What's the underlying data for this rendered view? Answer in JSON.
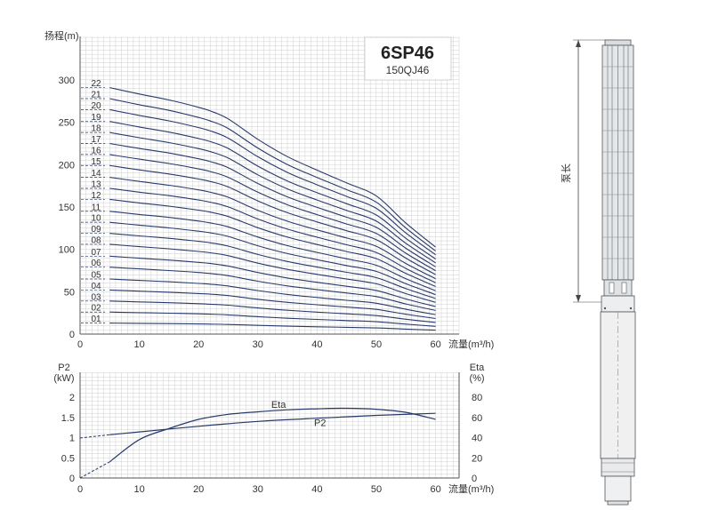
{
  "chart_data": [
    {
      "type": "line",
      "title": "6SP46",
      "subtitle": "150QJ46",
      "xlabel": "流量(m³/h)",
      "ylabel": "扬程(m)",
      "xlim": [
        0,
        60
      ],
      "ylim": [
        0,
        300
      ],
      "x_ticks": [
        "0",
        "10",
        "20",
        "30",
        "40",
        "50",
        "60"
      ],
      "y_ticks": [
        "0",
        "50",
        "100",
        "150",
        "200",
        "250",
        "300"
      ],
      "grid": true,
      "x": [
        5,
        10,
        15,
        20,
        22,
        25,
        30,
        35,
        40,
        45,
        50,
        55,
        60
      ],
      "shape": [
        1.0,
        0.974,
        0.95,
        0.92,
        0.905,
        0.873,
        0.79,
        0.72,
        0.665,
        0.613,
        0.56,
        0.45,
        0.353
      ],
      "series": [
        {
          "name": "01",
          "shut_off": 13
        },
        {
          "name": "02",
          "shut_off": 26
        },
        {
          "name": "03",
          "shut_off": 39
        },
        {
          "name": "04",
          "shut_off": 52
        },
        {
          "name": "05",
          "shut_off": 65
        },
        {
          "name": "06",
          "shut_off": 79
        },
        {
          "name": "07",
          "shut_off": 92
        },
        {
          "name": "08",
          "shut_off": 106
        },
        {
          "name": "09",
          "shut_off": 119
        },
        {
          "name": "10",
          "shut_off": 132
        },
        {
          "name": "11",
          "shut_off": 145
        },
        {
          "name": "12",
          "shut_off": 159
        },
        {
          "name": "13",
          "shut_off": 172
        },
        {
          "name": "14",
          "shut_off": 185
        },
        {
          "name": "15",
          "shut_off": 199
        },
        {
          "name": "16",
          "shut_off": 212
        },
        {
          "name": "17",
          "shut_off": 225
        },
        {
          "name": "18",
          "shut_off": 238
        },
        {
          "name": "19",
          "shut_off": 251
        },
        {
          "name": "20",
          "shut_off": 265
        },
        {
          "name": "21",
          "shut_off": 278
        },
        {
          "name": "22",
          "shut_off": 291
        }
      ]
    },
    {
      "type": "line",
      "xlabel": "流量(m³/h)",
      "ylabel_left": "P2\n(kW)",
      "ylabel_right": "Eta\n(%)",
      "xlim": [
        0,
        60
      ],
      "ylim_left": [
        0,
        2
      ],
      "ylim_right": [
        0,
        80
      ],
      "x_ticks": [
        "0",
        "10",
        "20",
        "30",
        "40",
        "50",
        "60"
      ],
      "y_ticks_left": [
        "0",
        "0.5",
        "1",
        "1.5",
        "2"
      ],
      "y_ticks_right": [
        "0",
        "20",
        "40",
        "60",
        "80"
      ],
      "grid": true,
      "series": [
        {
          "name": "P2",
          "axis": "left",
          "x": [
            0,
            5,
            10,
            20,
            30,
            40,
            50,
            60
          ],
          "y": [
            0.99,
            1.07,
            1.14,
            1.28,
            1.4,
            1.48,
            1.55,
            1.6
          ]
        },
        {
          "name": "Eta",
          "axis": "right",
          "x": [
            0,
            5,
            10,
            15,
            20,
            25,
            30,
            35,
            40,
            45,
            50,
            55,
            60
          ],
          "y": [
            0,
            16,
            38,
            49,
            58,
            63,
            65.5,
            67.5,
            68.5,
            69,
            68,
            65,
            58
          ]
        }
      ]
    }
  ],
  "pump_drawing": {
    "dimension_label": "泵长"
  },
  "colors": {
    "curve": "#283a6a",
    "grid": "#cfcfcf",
    "axis": "#555555"
  }
}
